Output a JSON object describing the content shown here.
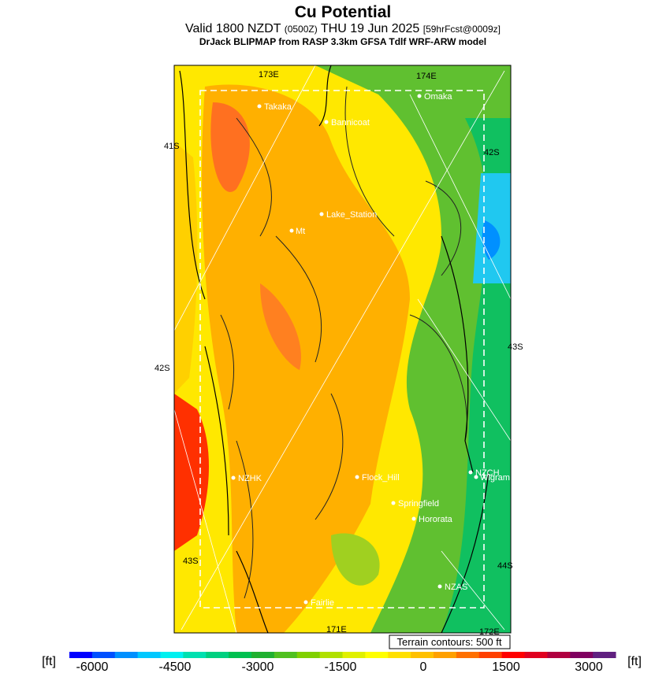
{
  "header": {
    "title": "Cu Potential",
    "valid": "Valid 1800 NZDT",
    "zulu": "(0500Z)",
    "date": "THU 19 Jun 2025",
    "forecast": "[59hrFcst@0009z]",
    "model": "DrJack BLIPMAP from RASP 3.3km GFSA Tdlf WRF-ARW model"
  },
  "map": {
    "places": [
      "Takaka",
      "Bannicoat",
      "Omaka",
      "Lake_Station",
      "Mt",
      "NZHK",
      "Flock_Hill",
      "NZCH",
      "Wigram",
      "Springfield",
      "Hororata",
      "NZAS",
      "Fairlie"
    ],
    "grid_labels": [
      "173E",
      "174E",
      "41S",
      "42S",
      "43S",
      "42S",
      "43S",
      "44S",
      "171E",
      "172E"
    ],
    "terrain_note": "Terrain contours: 500 ft"
  },
  "colorbar": {
    "unit": "[ft]",
    "colors": [
      "#0000ff",
      "#0050ff",
      "#0090ff",
      "#00c8ff",
      "#00f0f0",
      "#00e0b0",
      "#00d080",
      "#00c050",
      "#20b030",
      "#50c020",
      "#80d000",
      "#b0e000",
      "#e0f000",
      "#ffff00",
      "#ffe000",
      "#ffc000",
      "#ffa000",
      "#ff7000",
      "#ff4000",
      "#ff0000",
      "#e00020",
      "#b00040",
      "#800060",
      "#602080"
    ],
    "labels": [
      "-6000",
      "-4500",
      "-3000",
      "-1500",
      "0",
      "1500",
      "3000"
    ]
  }
}
